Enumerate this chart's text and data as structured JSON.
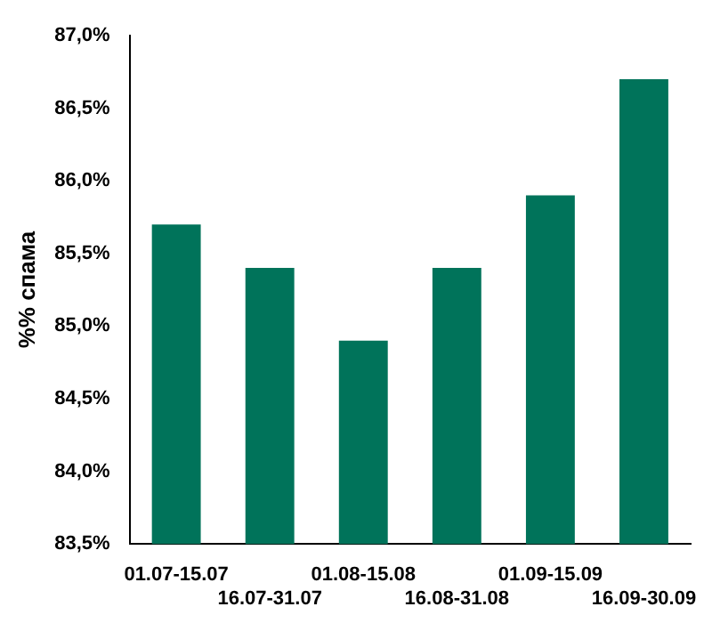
{
  "chart_data": {
    "type": "bar",
    "ylabel": "%% спама",
    "categories": [
      "01.07-15.07",
      "16.07-31.07",
      "01.08-15.08",
      "16.08-31.08",
      "01.09-15.09",
      "16.09-30.09"
    ],
    "values": [
      85.7,
      85.4,
      84.9,
      85.4,
      85.9,
      86.7
    ],
    "color": "#00735a",
    "ylim": [
      83.5,
      87.0
    ],
    "yticks": [
      {
        "value": 83.5,
        "label": "83,5%"
      },
      {
        "value": 84,
        "label": "84,0%"
      },
      {
        "value": 84.5,
        "label": "84,5%"
      },
      {
        "value": 85,
        "label": "85,0%"
      },
      {
        "value": 85.5,
        "label": "85,5%"
      },
      {
        "value": 86,
        "label": "86,0%"
      },
      {
        "value": 86.5,
        "label": "86,5%"
      },
      {
        "value": 87,
        "label": "87,0%"
      }
    ],
    "grid": false,
    "legend": false
  }
}
